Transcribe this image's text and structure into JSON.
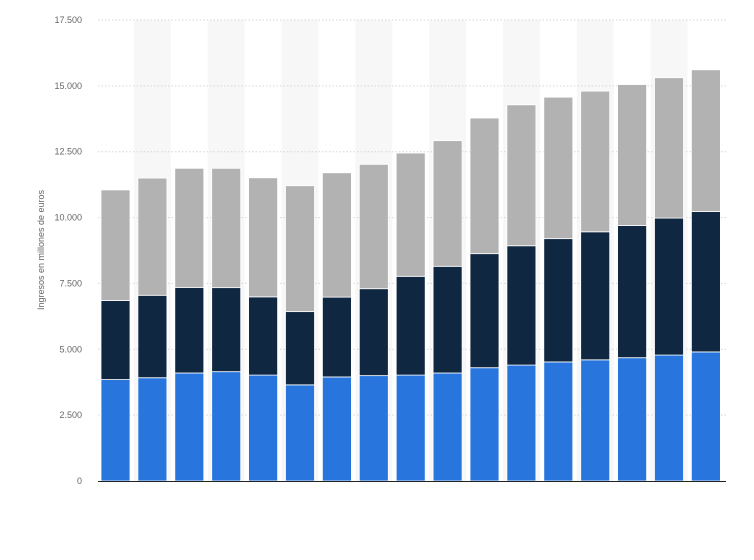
{
  "chart_data": {
    "type": "bar",
    "stacked": true,
    "title": "",
    "xlabel": "",
    "ylabel": "Ingresos en millones de euros",
    "ylim": [
      0,
      17500
    ],
    "y_ticks": [
      "0",
      "2.500",
      "5.000",
      "7.500",
      "10.000",
      "12.500",
      "15.000",
      "17.500"
    ],
    "y_tick_values": [
      0,
      2500,
      5000,
      7500,
      10000,
      12500,
      15000,
      17500
    ],
    "grid": true,
    "legend": "none",
    "bar_count": 17,
    "series": [
      {
        "color": "#2876dd",
        "values": [
          3850,
          3920,
          4100,
          4150,
          4020,
          3650,
          3950,
          4000,
          4020,
          4100,
          4300,
          4400,
          4520,
          4600,
          4680,
          4780,
          4900
        ]
      },
      {
        "color": "#0f2740",
        "values": [
          3000,
          3130,
          3250,
          3190,
          2970,
          2780,
          3030,
          3300,
          3750,
          4050,
          4330,
          4530,
          4680,
          4860,
          5020,
          5200,
          5330
        ]
      },
      {
        "color": "#b2b2b2",
        "values": [
          4200,
          4450,
          4520,
          4530,
          4520,
          4780,
          4720,
          4720,
          4680,
          4770,
          5150,
          5350,
          5370,
          5340,
          5350,
          5330,
          5380
        ]
      }
    ]
  }
}
